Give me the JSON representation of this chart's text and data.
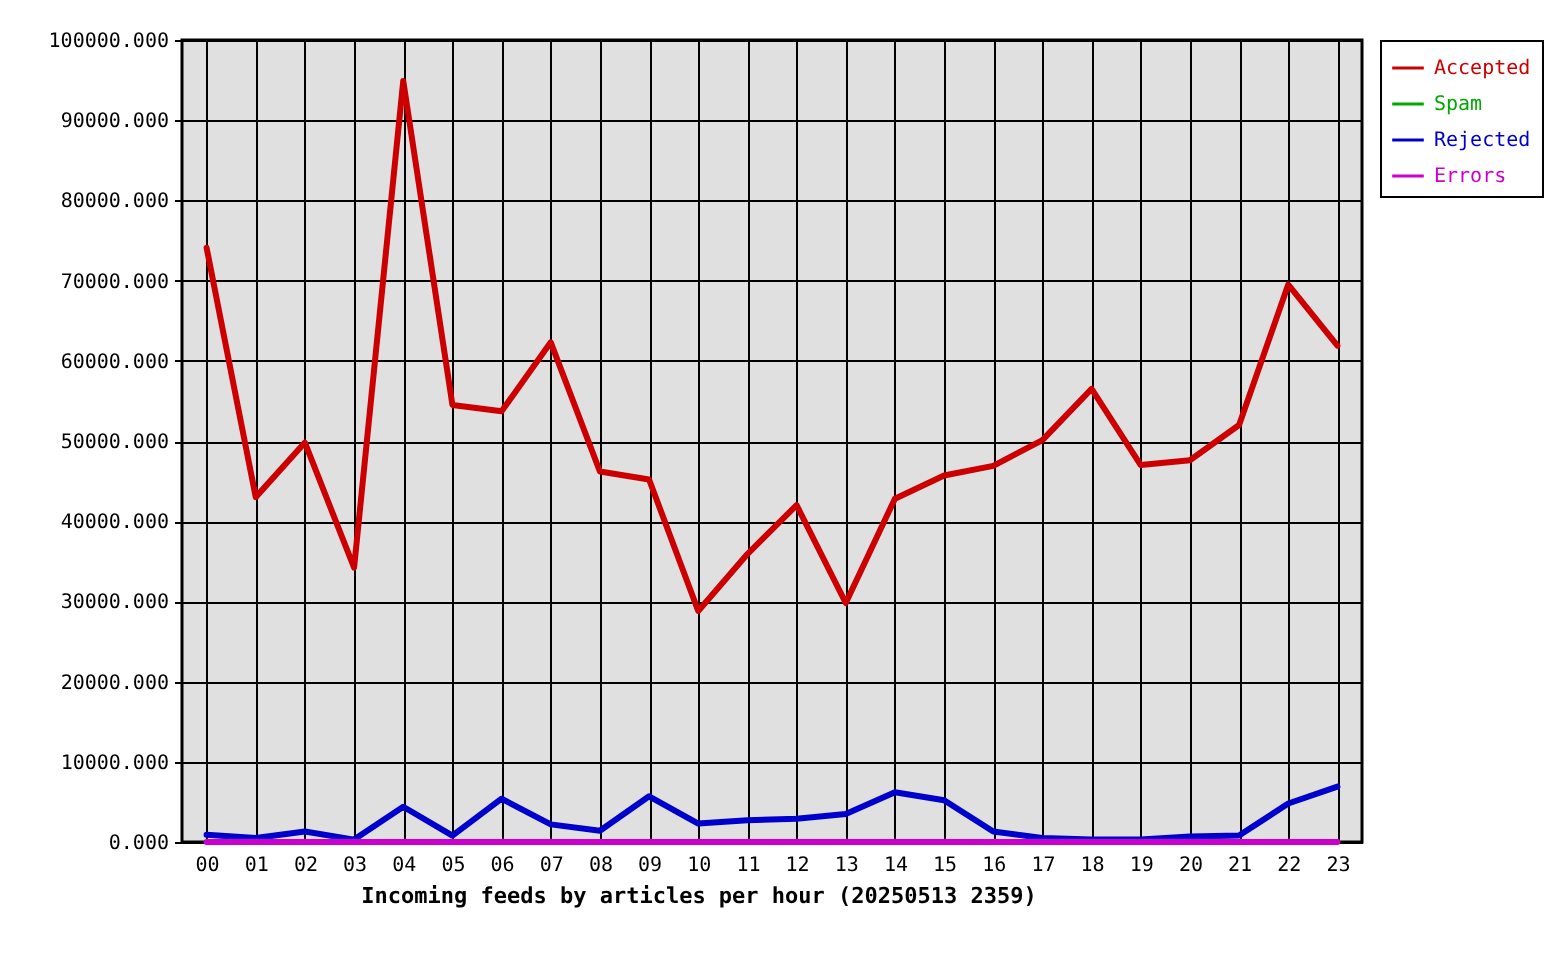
{
  "chart_data": {
    "type": "line",
    "xlabel": "Incoming feeds by articles per hour (20250513 2359)",
    "categories": [
      "00",
      "01",
      "02",
      "03",
      "04",
      "05",
      "06",
      "07",
      "08",
      "09",
      "10",
      "11",
      "12",
      "13",
      "14",
      "15",
      "16",
      "17",
      "18",
      "19",
      "20",
      "21",
      "22",
      "23"
    ],
    "series": [
      {
        "name": "Accepted",
        "color": "#cc0000",
        "values": [
          74100,
          43000,
          49800,
          34200,
          94900,
          54500,
          53700,
          62300,
          46200,
          45200,
          28800,
          35900,
          42000,
          29800,
          42800,
          45700,
          46900,
          50100,
          56500,
          47000,
          47600,
          52000,
          69500,
          61900
        ]
      },
      {
        "name": "Spam",
        "color": "#00aa00",
        "values": [
          null,
          null,
          null,
          null,
          null,
          null,
          null,
          null,
          null,
          null,
          null,
          null,
          null,
          null,
          null,
          null,
          null,
          null,
          null,
          null,
          null,
          null,
          null,
          null
        ]
      },
      {
        "name": "Rejected",
        "color": "#0000cc",
        "values": [
          900,
          500,
          1300,
          300,
          4400,
          800,
          5400,
          2200,
          1400,
          5700,
          2300,
          2700,
          2900,
          3500,
          6200,
          5200,
          1300,
          500,
          300,
          300,
          700,
          800,
          4800,
          6900
        ]
      },
      {
        "name": "Errors",
        "color": "#cc00cc",
        "values": [
          0,
          0,
          0,
          0,
          0,
          0,
          0,
          0,
          0,
          0,
          0,
          0,
          0,
          0,
          0,
          0,
          0,
          0,
          0,
          0,
          0,
          0,
          0,
          0
        ]
      }
    ],
    "ylim": [
      0,
      100000
    ],
    "yticks": [
      {
        "value": 0,
        "label": "0.000"
      },
      {
        "value": 10000,
        "label": "10000.000"
      },
      {
        "value": 20000,
        "label": "20000.000"
      },
      {
        "value": 30000,
        "label": "30000.000"
      },
      {
        "value": 40000,
        "label": "40000.000"
      },
      {
        "value": 50000,
        "label": "50000.000"
      },
      {
        "value": 60000,
        "label": "60000.000"
      },
      {
        "value": 70000,
        "label": "70000.000"
      },
      {
        "value": 80000,
        "label": "80000.000"
      },
      {
        "value": 90000,
        "label": "90000.000"
      },
      {
        "value": 100000,
        "label": "100000.000"
      }
    ],
    "grid": true,
    "legend": "top right",
    "line_style": "solid"
  }
}
